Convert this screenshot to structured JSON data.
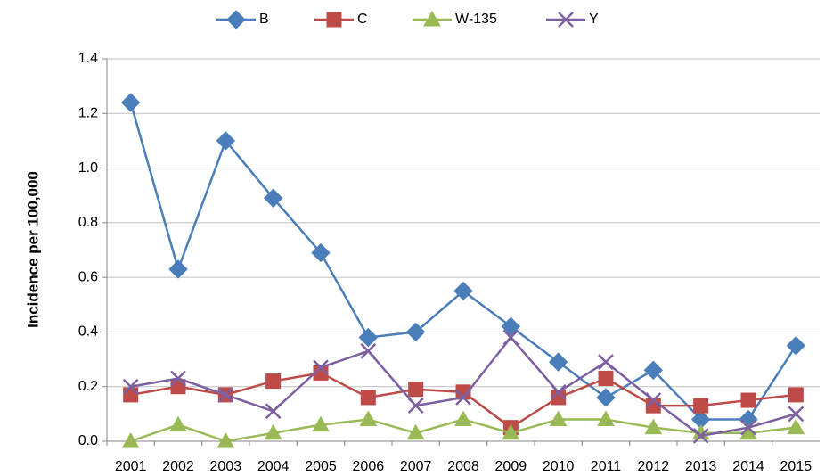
{
  "chart_data": {
    "type": "line",
    "y_label": "Incidence per 100,000",
    "categories": [
      "2001",
      "2002",
      "2003",
      "2004",
      "2005",
      "2006",
      "2007",
      "2008",
      "2009",
      "2010",
      "2011",
      "2012",
      "2013",
      "2014",
      "2015"
    ],
    "series": [
      {
        "name": "B",
        "color": "#4a7ebb",
        "marker": "diamond",
        "values": [
          1.24,
          0.63,
          1.1,
          0.89,
          0.69,
          0.38,
          0.4,
          0.55,
          0.42,
          0.29,
          0.16,
          0.26,
          0.08,
          0.08,
          0.35
        ]
      },
      {
        "name": "C",
        "color": "#be4b48",
        "marker": "square",
        "values": [
          0.17,
          0.2,
          0.17,
          0.22,
          0.25,
          0.16,
          0.19,
          0.18,
          0.05,
          0.16,
          0.23,
          0.13,
          0.13,
          0.15,
          0.17
        ]
      },
      {
        "name": "W-135",
        "color": "#98b954",
        "marker": "triangle",
        "values": [
          0.0,
          0.06,
          0.0,
          0.03,
          0.06,
          0.08,
          0.03,
          0.08,
          0.03,
          0.08,
          0.08,
          0.05,
          0.03,
          0.03,
          0.05
        ]
      },
      {
        "name": "Y",
        "color": "#7d60a0",
        "marker": "x",
        "values": [
          0.2,
          0.23,
          0.17,
          0.11,
          0.27,
          0.33,
          0.13,
          0.16,
          0.38,
          0.18,
          0.29,
          0.15,
          0.02,
          0.05,
          0.1
        ]
      }
    ],
    "ylim": [
      0,
      1.4
    ],
    "yticks": [
      {
        "value": 0,
        "label": "0.0"
      },
      0.2,
      0.4,
      0.6,
      0.8,
      {
        "value": 1,
        "label": "1.0"
      },
      1.2,
      1.4
    ],
    "grid": true,
    "legend": "top"
  }
}
